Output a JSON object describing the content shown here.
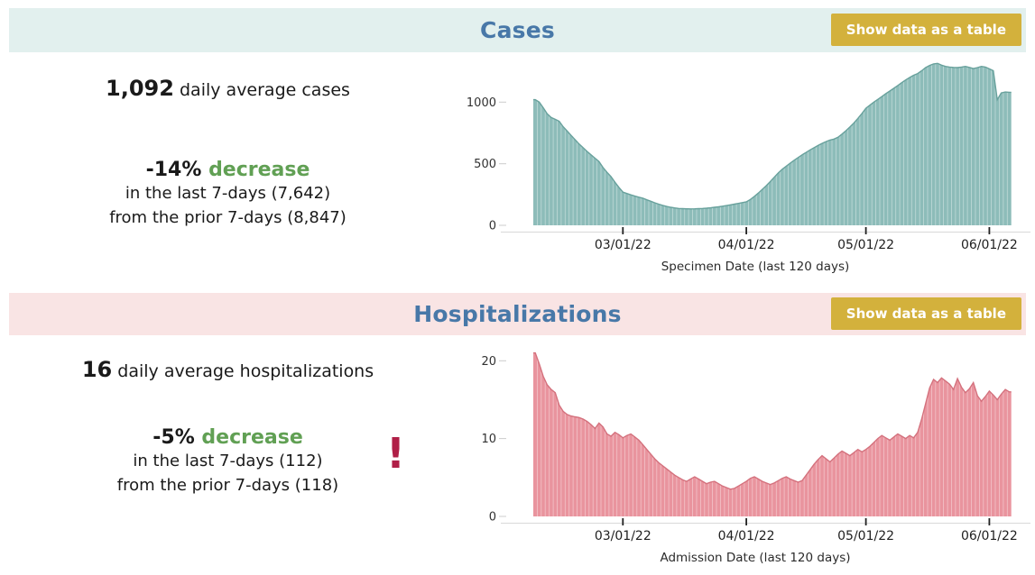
{
  "colors": {
    "title_blue": "#4878a8",
    "button_gold": "#d3b13c",
    "button_text": "#ffffff",
    "green": "#61a054",
    "alert_red": "#b01f47",
    "cases_header_bg": "#e2f0ee",
    "hosp_header_bg": "#f9e4e4"
  },
  "cases": {
    "title": "Cases",
    "show_table_label": "Show data as a table",
    "avg_value": "1,092",
    "avg_label": "daily average cases",
    "pct": "-14%",
    "direction": "decrease",
    "line2": "in the last 7-days (7,642)",
    "line3": "from the prior 7-days (8,847)"
  },
  "hospitalizations": {
    "title": "Hospitalizations",
    "show_table_label": "Show data as a table",
    "avg_value": "16",
    "avg_label": "daily average hospitalizations",
    "pct": "-5%",
    "direction": "decrease",
    "line2": "in the last 7-days (112)",
    "line3": "from the prior 7-days (118)",
    "alert": "!"
  },
  "chart_data": [
    {
      "id": "cases-chart",
      "type": "area",
      "title": "Cases",
      "xlabel": "Specimen Date (last 120 days)",
      "ylabel": "",
      "x_tick_labels": [
        "03/01/22",
        "04/01/22",
        "05/01/22",
        "06/01/22"
      ],
      "x_tick_days": [
        22,
        53,
        83,
        114
      ],
      "y_ticks": [
        0,
        500,
        1000
      ],
      "ylim": [
        0,
        1390
      ],
      "fill": "#8dbcb9",
      "stroke": "#68a19c",
      "values": [
        1020,
        1000,
        955,
        905,
        875,
        860,
        845,
        800,
        765,
        730,
        695,
        660,
        630,
        600,
        572,
        545,
        518,
        470,
        430,
        395,
        350,
        308,
        270,
        258,
        247,
        237,
        228,
        220,
        207,
        195,
        183,
        172,
        162,
        153,
        146,
        141,
        137,
        135,
        134,
        133,
        134,
        135,
        137,
        139,
        142,
        146,
        150,
        155,
        160,
        166,
        172,
        178,
        184,
        190,
        210,
        235,
        262,
        292,
        322,
        355,
        390,
        425,
        455,
        480,
        505,
        528,
        550,
        572,
        592,
        612,
        630,
        648,
        665,
        680,
        692,
        700,
        715,
        740,
        768,
        798,
        830,
        868,
        908,
        950,
        975,
        1000,
        1022,
        1045,
        1068,
        1090,
        1112,
        1135,
        1158,
        1180,
        1200,
        1218,
        1232,
        1255,
        1280,
        1298,
        1310,
        1315,
        1300,
        1290,
        1285,
        1282,
        1280,
        1285,
        1290,
        1282,
        1272,
        1280,
        1290,
        1285,
        1270,
        1255,
        1020,
        1075,
        1082,
        1080
      ]
    },
    {
      "id": "hosp-chart",
      "type": "area",
      "title": "Hospitalizations",
      "xlabel": "Admission Date (last 120 days)",
      "ylabel": "",
      "x_tick_labels": [
        "03/01/22",
        "04/01/22",
        "05/01/22",
        "06/01/22"
      ],
      "x_tick_days": [
        22,
        53,
        83,
        114
      ],
      "y_ticks": [
        0,
        10,
        20
      ],
      "ylim": [
        0,
        22
      ],
      "fill": "#e9949e",
      "stroke": "#d4717d",
      "values": [
        21,
        19.6,
        18,
        16.9,
        16.3,
        15.9,
        14.3,
        13.5,
        13.1,
        12.9,
        12.8,
        12.7,
        12.5,
        12.2,
        11.8,
        11.3,
        12,
        11.5,
        10.6,
        10.3,
        10.8,
        10.5,
        10.1,
        10.4,
        10.6,
        10.2,
        9.8,
        9.2,
        8.6,
        8,
        7.4,
        6.9,
        6.5,
        6.1,
        5.7,
        5.3,
        5,
        4.7,
        4.5,
        4.8,
        5.1,
        4.8,
        4.5,
        4.2,
        4.4,
        4.5,
        4.2,
        3.9,
        3.7,
        3.5,
        3.6,
        3.9,
        4.2,
        4.5,
        4.9,
        5.1,
        4.8,
        4.5,
        4.3,
        4.1,
        4.3,
        4.6,
        4.9,
        5.1,
        4.8,
        4.6,
        4.4,
        4.6,
        5.3,
        6,
        6.7,
        7.3,
        7.8,
        7.4,
        7,
        7.5,
        8,
        8.4,
        8.1,
        7.8,
        8.2,
        8.6,
        8.3,
        8.6,
        9,
        9.5,
        10,
        10.4,
        10.1,
        9.8,
        10.2,
        10.6,
        10.3,
        10,
        10.4,
        10.1,
        10.8,
        12.5,
        14.5,
        16.5,
        17.6,
        17.2,
        17.8,
        17.4,
        17,
        16.3,
        17.7,
        16.6,
        15.9,
        16.4,
        17.2,
        15.5,
        14.8,
        15.4,
        16.1,
        15.6,
        15,
        15.7,
        16.3,
        16
      ]
    }
  ]
}
